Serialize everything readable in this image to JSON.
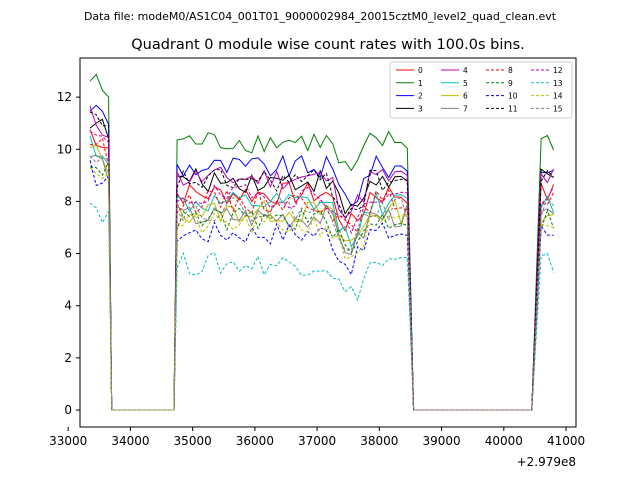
{
  "suptitle": "Data file: modeM0/AS1C04_001T01_9000002984_20015cztM0_level2_quad_clean.evt",
  "chart_data": {
    "type": "line",
    "title": "Quadrant 0 module wise count rates with 100.0s bins.",
    "xlabel": "",
    "ylabel": "",
    "x_offset_label": "+2.979e8",
    "xlim": [
      33190,
      41160
    ],
    "ylim": [
      -0.65,
      13.5
    ],
    "xticks": [
      33000,
      34000,
      35000,
      36000,
      37000,
      38000,
      39000,
      40000,
      41000
    ],
    "xtick_labels": [
      "33000",
      "34000",
      "35000",
      "36000",
      "37000",
      "38000",
      "39000",
      "40000",
      "41000"
    ],
    "yticks": [
      0,
      2,
      4,
      6,
      8,
      10,
      12
    ],
    "ytick_labels": [
      "0",
      "2",
      "4",
      "6",
      "8",
      "10",
      "12"
    ],
    "grid": false,
    "legend_position": "top-right",
    "legend_columns": 4,
    "series": [
      {
        "name": "0",
        "color": "#ff0000",
        "dashed": false,
        "level": 8.3
      },
      {
        "name": "1",
        "color": "#008000",
        "dashed": false,
        "level": 10.3
      },
      {
        "name": "2",
        "color": "#0000ff",
        "dashed": false,
        "level": 9.3
      },
      {
        "name": "3",
        "color": "#000000",
        "dashed": false,
        "level": 8.8
      },
      {
        "name": "4",
        "color": "#bf00bf",
        "dashed": false,
        "level": 8.9
      },
      {
        "name": "5",
        "color": "#00bfbf",
        "dashed": false,
        "level": 7.9
      },
      {
        "name": "6",
        "color": "#bfbf00",
        "dashed": false,
        "level": 7.6
      },
      {
        "name": "7",
        "color": "#808080",
        "dashed": false,
        "level": 7.4
      },
      {
        "name": "8",
        "color": "#ff0000",
        "dashed": true,
        "level": 8.0
      },
      {
        "name": "9",
        "color": "#008000",
        "dashed": true,
        "level": 7.3
      },
      {
        "name": "10",
        "color": "#0000ff",
        "dashed": true,
        "level": 6.8
      },
      {
        "name": "11",
        "color": "#000000",
        "dashed": true,
        "level": 8.8
      },
      {
        "name": "12",
        "color": "#bf00bf",
        "dashed": true,
        "level": 8.2
      },
      {
        "name": "13",
        "color": "#00bfbf",
        "dashed": true,
        "level": 5.6
      },
      {
        "name": "14",
        "color": "#bfbf00",
        "dashed": true,
        "level": 7.1
      },
      {
        "name": "15",
        "color": "#808080",
        "dashed": true,
        "level": 7.7
      }
    ],
    "segments": [
      {
        "x_start": 33350,
        "x_end": 33650,
        "active": true
      },
      {
        "x_start": 33700,
        "x_end": 34700,
        "active": false
      },
      {
        "x_start": 34750,
        "x_end": 38450,
        "active": true
      },
      {
        "x_start": 38550,
        "x_end": 40450,
        "active": false
      },
      {
        "x_start": 40600,
        "x_end": 40800,
        "active": true
      }
    ]
  }
}
